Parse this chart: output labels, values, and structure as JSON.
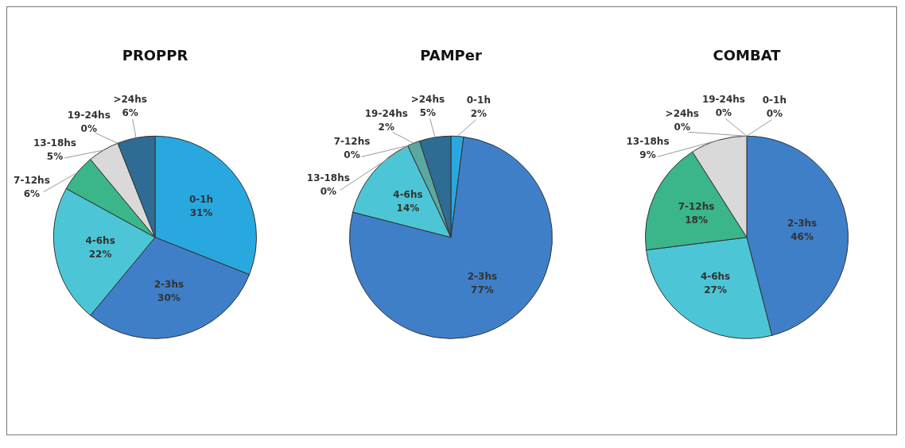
{
  "chart_data": [
    {
      "type": "pie",
      "title": "PROPPR",
      "categories": [
        "0-1h",
        "2-3hs",
        "4-6hs",
        "7-12hs",
        "13-18hs",
        "19-24hs",
        ">24hs"
      ],
      "values": [
        31,
        30,
        22,
        6,
        5,
        0,
        6
      ],
      "value_labels": [
        "31%",
        "30%",
        "22%",
        "6%",
        "5%",
        "0%",
        "6%"
      ],
      "colors": [
        "#29a8e0",
        "#3f7fc8",
        "#4cc6d6",
        "#3bb58a",
        "#d9d9d9",
        "#5aa8a0",
        "#2f6c94"
      ]
    },
    {
      "type": "pie",
      "title": "PAMPer",
      "categories": [
        "0-1h",
        "2-3hs",
        "4-6hs",
        "7-12hs",
        "13-18hs",
        "19-24hs",
        ">24hs"
      ],
      "values": [
        2,
        77,
        14,
        0,
        0,
        2,
        5
      ],
      "value_labels": [
        "2%",
        "77%",
        "14%",
        "0%",
        "0%",
        "2%",
        "5%"
      ],
      "colors": [
        "#29a8e0",
        "#3f7fc8",
        "#4cc6d6",
        "#3bb58a",
        "#d9d9d9",
        "#5aa8a0",
        "#2f6c94"
      ]
    },
    {
      "type": "pie",
      "title": "COMBAT",
      "categories": [
        "0-1h",
        "2-3hs",
        "4-6hs",
        "7-12hs",
        "13-18hs",
        "19-24hs",
        ">24hs"
      ],
      "values": [
        0,
        46,
        27,
        18,
        9,
        0,
        0
      ],
      "value_labels": [
        "0%",
        "46%",
        "27%",
        "18%",
        "9%",
        "0%",
        "0%"
      ],
      "colors": [
        "#29a8e0",
        "#3f7fc8",
        "#4cc6d6",
        "#3bb58a",
        "#d9d9d9",
        "#5aa8a0",
        "#2f6c94"
      ]
    }
  ]
}
